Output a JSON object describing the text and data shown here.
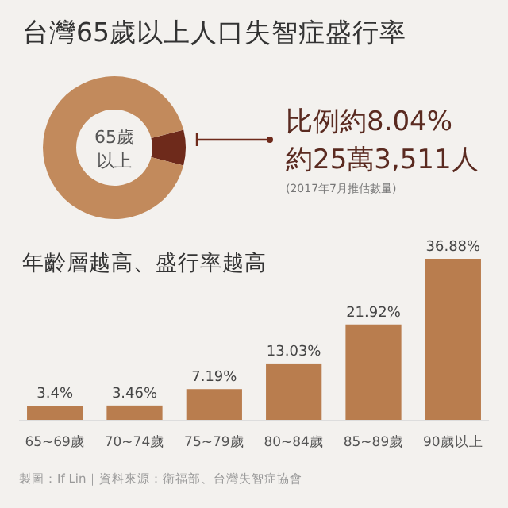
{
  "chart_data": [
    {
      "type": "donut",
      "title": "台灣65歲以上人口失智症盛行率",
      "categories": [
        null,
        null
      ],
      "values": [
        8.04,
        91.96
      ],
      "colors": [
        "#6e2a1b",
        "#c28a5c"
      ],
      "annotations": [
        "65歲以上",
        "比例約8.04%",
        "約25萬3,511人",
        "(2017年7月推估數量)"
      ]
    },
    {
      "type": "bar",
      "title": "年齡層越高、盛行率越高",
      "categories": [
        "65~69歲",
        "70~74歲",
        "75~79歲",
        "80~84歲",
        "85~89歲",
        "90歲以上"
      ],
      "values": [
        3.4,
        3.46,
        7.19,
        13.03,
        21.92,
        36.88
      ],
      "color": "#b97d4e",
      "value_labels": [
        "3.4%",
        "3.46%",
        "7.19%",
        "13.03%",
        "21.92%",
        "36.88%"
      ],
      "annotations": [
        "製圖：If Lin｜資料來源：衛福部、台灣失智症協會"
      ]
    }
  ]
}
